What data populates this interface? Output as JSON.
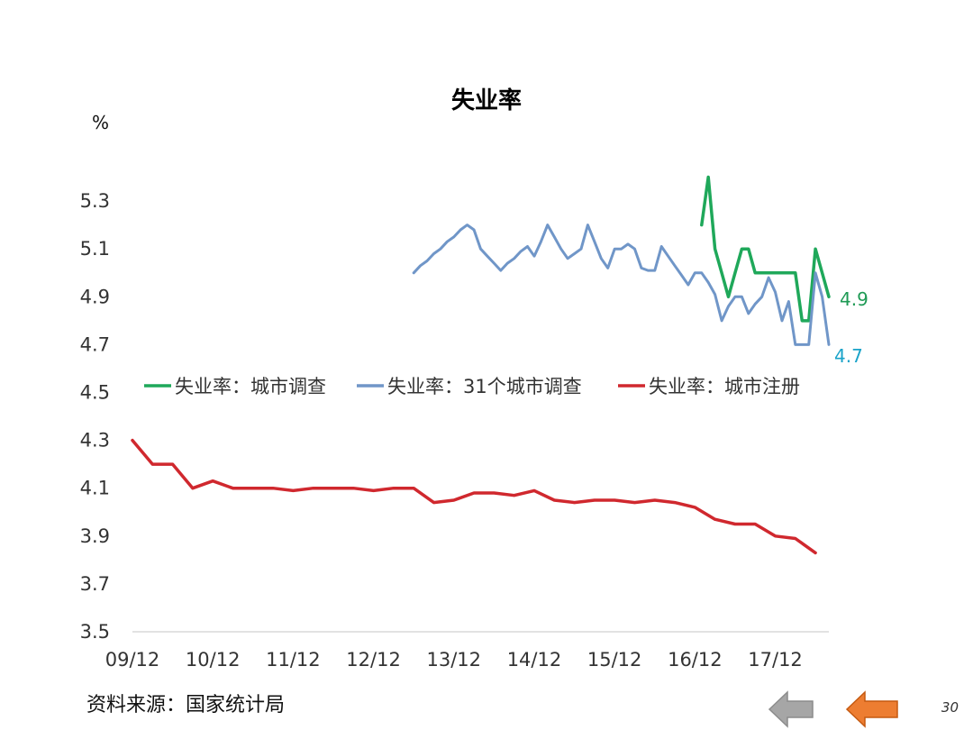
{
  "page_number": "30",
  "source_text": "资料来源：国家统计局",
  "nav": {
    "prev_color": "#a6a6a6",
    "next_color": "#ed7d31"
  },
  "chart_data": {
    "type": "line",
    "title": "失业率",
    "ylabel": "%",
    "xlabel": "",
    "ylim": [
      3.5,
      5.5
    ],
    "yticks": [
      3.5,
      3.7,
      3.9,
      4.1,
      4.3,
      4.5,
      4.7,
      4.9,
      5.1,
      5.3
    ],
    "ytick_labels": [
      "3.5",
      "3.7",
      "3.9",
      "4.1",
      "4.3",
      "4.5",
      "4.7",
      "4.9",
      "5.1",
      "5.3"
    ],
    "xlim": [
      0,
      104
    ],
    "xticks": [
      0,
      12,
      24,
      36,
      48,
      60,
      72,
      84,
      96
    ],
    "xtick_labels": [
      "09/12",
      "10/12",
      "11/12",
      "12/12",
      "13/12",
      "14/12",
      "15/12",
      "16/12",
      "17/12"
    ],
    "grid": false,
    "legend_position": "center",
    "series": [
      {
        "name": "失业率：城市调查",
        "color": "#1fa85a",
        "end_label": "4.9",
        "end_label_color": "#1f9a55",
        "x": [
          85,
          86,
          87,
          88,
          89,
          90,
          91,
          92,
          93,
          94,
          95,
          96,
          97,
          98,
          99,
          100,
          101,
          102,
          103,
          104
        ],
        "values": [
          5.2,
          5.4,
          5.1,
          5.0,
          4.9,
          5.0,
          5.1,
          5.1,
          5.0,
          5.0,
          5.0,
          5.0,
          5.0,
          5.0,
          5.0,
          4.8,
          4.8,
          5.1,
          5.0,
          4.9
        ]
      },
      {
        "name": "失业率：31个城市调查",
        "color": "#7096c8",
        "end_label": "4.7",
        "end_label_color": "#1aa3c9",
        "x": [
          42,
          43,
          44,
          45,
          46,
          47,
          48,
          49,
          50,
          51,
          52,
          53,
          54,
          55,
          56,
          57,
          58,
          59,
          60,
          61,
          62,
          63,
          64,
          65,
          66,
          67,
          68,
          69,
          70,
          71,
          72,
          73,
          74,
          75,
          76,
          77,
          78,
          79,
          80,
          81,
          82,
          83,
          84,
          85,
          86,
          87,
          88,
          89,
          90,
          91,
          92,
          93,
          94,
          95,
          96,
          97,
          98,
          99,
          100,
          101,
          102,
          103,
          104
        ],
        "values": [
          5.0,
          5.03,
          5.05,
          5.08,
          5.1,
          5.13,
          5.15,
          5.18,
          5.2,
          5.18,
          5.1,
          5.07,
          5.04,
          5.01,
          5.04,
          5.06,
          5.09,
          5.11,
          5.07,
          5.13,
          5.2,
          5.15,
          5.1,
          5.06,
          5.08,
          5.1,
          5.2,
          5.13,
          5.06,
          5.02,
          5.1,
          5.1,
          5.12,
          5.1,
          5.02,
          5.01,
          5.01,
          5.11,
          5.07,
          5.03,
          4.99,
          4.95,
          5.0,
          5.0,
          4.96,
          4.91,
          4.8,
          4.86,
          4.9,
          4.9,
          4.83,
          4.87,
          4.9,
          4.98,
          4.92,
          4.8,
          4.88,
          4.7,
          4.7,
          4.7,
          5.0,
          4.9,
          4.7
        ]
      },
      {
        "name": "失业率：城市注册",
        "color": "#d0282e",
        "end_label": "",
        "x": [
          0,
          3,
          6,
          9,
          12,
          15,
          18,
          21,
          24,
          27,
          30,
          33,
          36,
          39,
          42,
          45,
          48,
          51,
          54,
          57,
          60,
          63,
          66,
          69,
          72,
          75,
          78,
          81,
          84,
          87,
          90,
          93,
          96,
          99,
          102
        ],
        "values": [
          4.3,
          4.2,
          4.2,
          4.1,
          4.13,
          4.1,
          4.1,
          4.1,
          4.09,
          4.1,
          4.1,
          4.1,
          4.09,
          4.1,
          4.1,
          4.04,
          4.05,
          4.08,
          4.08,
          4.07,
          4.09,
          4.05,
          4.04,
          4.05,
          4.05,
          4.04,
          4.05,
          4.04,
          4.02,
          3.97,
          3.95,
          3.95,
          3.9,
          3.89,
          3.83
        ]
      }
    ]
  }
}
